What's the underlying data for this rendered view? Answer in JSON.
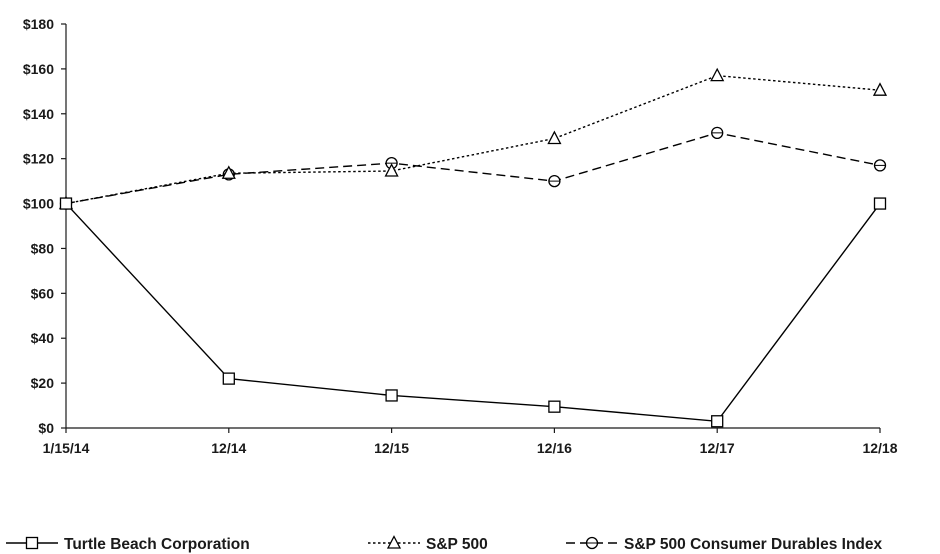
{
  "chart_data": {
    "type": "line",
    "x": [
      "1/15/14",
      "12/14",
      "12/15",
      "12/16",
      "12/17",
      "12/18"
    ],
    "ylim": [
      0,
      180
    ],
    "yticks": [
      {
        "value": 0,
        "label": "$0"
      },
      {
        "value": 20,
        "label": "$20"
      },
      {
        "value": 40,
        "label": "$40"
      },
      {
        "value": 60,
        "label": "$60"
      },
      {
        "value": 80,
        "label": "$80"
      },
      {
        "value": 100,
        "label": "$100"
      },
      {
        "value": 120,
        "label": "$120"
      },
      {
        "value": 140,
        "label": "$140"
      },
      {
        "value": 160,
        "label": "$160"
      },
      {
        "value": 180,
        "label": "$180"
      }
    ],
    "grid": false,
    "legend_position": "bottom",
    "series": [
      {
        "name": "Turtle Beach Corporation",
        "values": [
          100,
          22,
          14.5,
          9.5,
          3,
          100
        ],
        "marker": "square",
        "dash": "solid",
        "color": "#000000"
      },
      {
        "name": "S&P 500",
        "values": [
          100,
          113.5,
          114.5,
          129,
          157,
          150.5
        ],
        "marker": "triangle",
        "dash": "dotted",
        "color": "#000000"
      },
      {
        "name": "S&P 500 Consumer Durables Index",
        "values": [
          100,
          113,
          118,
          110,
          131.5,
          117
        ],
        "marker": "circle",
        "dash": "dashed",
        "color": "#000000"
      }
    ]
  }
}
